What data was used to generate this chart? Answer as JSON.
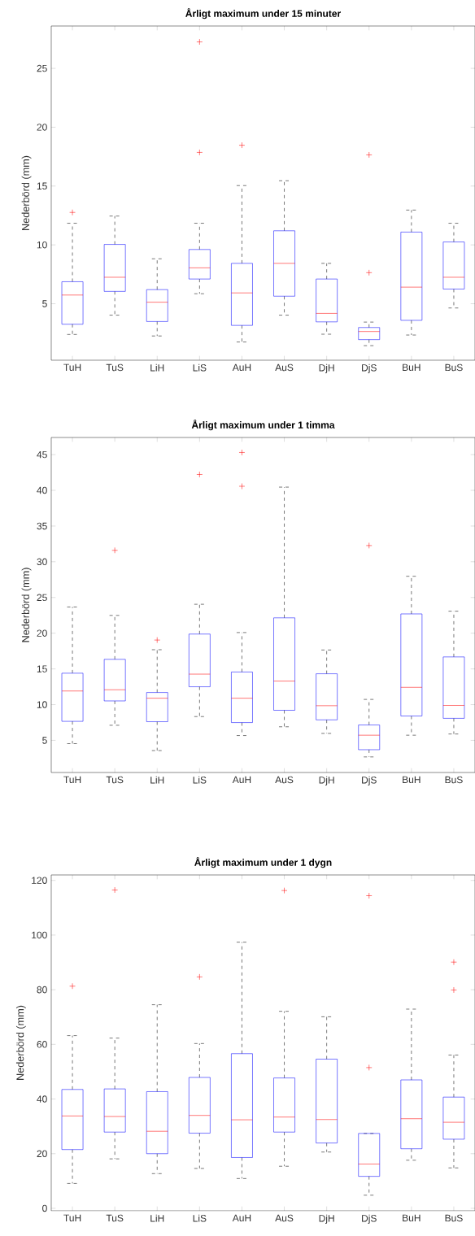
{
  "chart_data": [
    {
      "type": "box",
      "title": "Årligt maximum under 15 minuter",
      "ylabel": "Nederbörd (mm)",
      "categories": [
        "TuH",
        "TuS",
        "LiH",
        "LiS",
        "AuH",
        "AuS",
        "DjH",
        "DjS",
        "BuH",
        "BuS"
      ],
      "ylim": [
        0.2,
        28.6
      ],
      "yticks": [
        5,
        10,
        15,
        20,
        25
      ],
      "marker": "cross",
      "series": [
        {
          "color": "#0000ff",
          "boxes": [
            {
              "low": 2.39,
              "q1": 3.26,
              "median": 5.74,
              "q3": 6.87,
              "high": 11.84,
              "outliers": [
                12.76
              ]
            },
            {
              "low": 4.03,
              "q1": 6.05,
              "median": 7.25,
              "q3": 10.04,
              "high": 12.45
            },
            {
              "low": 2.26,
              "q1": 3.49,
              "median": 5.13,
              "q3": 6.2,
              "high": 8.82
            },
            {
              "low": 5.85,
              "q1": 7.1,
              "median": 8.05,
              "q3": 9.61,
              "high": 11.84,
              "outliers": [
                17.86,
                27.25
              ]
            },
            {
              "low": 1.75,
              "q1": 3.16,
              "median": 5.92,
              "q3": 8.43,
              "high": 15.04,
              "outliers": [
                18.47
              ]
            },
            {
              "low": 4.03,
              "q1": 5.64,
              "median": 8.43,
              "q3": 11.2,
              "high": 15.45
            },
            {
              "low": 2.41,
              "q1": 3.46,
              "median": 4.18,
              "q3": 7.1,
              "high": 8.43
            },
            {
              "low": 1.44,
              "q1": 1.95,
              "median": 2.64,
              "q3": 2.98,
              "high": 3.44,
              "outliers": [
                7.64,
                17.65
              ]
            },
            {
              "low": 2.34,
              "q1": 3.59,
              "median": 6.41,
              "q3": 11.09,
              "high": 12.96
            },
            {
              "low": 4.64,
              "q1": 6.25,
              "median": 7.25,
              "q3": 10.25,
              "high": 11.84
            }
          ]
        }
      ]
    },
    {
      "type": "box",
      "title": "Årligt maximum under 1 timma",
      "ylabel": "Nederbörd (mm)",
      "categories": [
        "TuH",
        "TuS",
        "LiH",
        "LiS",
        "AuH",
        "AuS",
        "DjH",
        "DjS",
        "BuH",
        "BuS"
      ],
      "ylim": [
        0.5,
        47.4
      ],
      "yticks": [
        5,
        10,
        15,
        20,
        25,
        30,
        35,
        40,
        45
      ],
      "marker": "cross",
      "series": [
        {
          "color": "#0000ff",
          "boxes": [
            {
              "low": 4.54,
              "q1": 7.66,
              "median": 11.91,
              "q3": 14.4,
              "high": 23.67
            },
            {
              "low": 7.11,
              "q1": 10.52,
              "median": 12.08,
              "q3": 16.34,
              "high": 22.49,
              "outliers": [
                31.6
              ]
            },
            {
              "low": 3.57,
              "q1": 7.61,
              "median": 10.9,
              "q3": 11.7,
              "high": 17.69,
              "outliers": [
                19.04
              ]
            },
            {
              "low": 8.33,
              "q1": 12.5,
              "median": 14.27,
              "q3": 19.88,
              "high": 24.05,
              "outliers": [
                42.22
              ]
            },
            {
              "low": 5.67,
              "q1": 7.49,
              "median": 10.9,
              "q3": 14.57,
              "high": 20.09,
              "outliers": [
                40.57,
                45.3
              ]
            },
            {
              "low": 6.9,
              "q1": 9.21,
              "median": 13.3,
              "q3": 22.15,
              "high": 40.45
            },
            {
              "low": 5.97,
              "q1": 7.87,
              "median": 9.85,
              "q3": 14.32,
              "high": 17.65
            },
            {
              "low": 2.68,
              "q1": 3.69,
              "median": 5.72,
              "q3": 7.15,
              "high": 10.73,
              "outliers": [
                32.27
              ]
            },
            {
              "low": 5.72,
              "q1": 8.41,
              "median": 12.42,
              "q3": 22.7,
              "high": 27.97
            },
            {
              "low": 5.89,
              "q1": 8.08,
              "median": 9.89,
              "q3": 16.68,
              "high": 23.08
            }
          ]
        }
      ]
    },
    {
      "type": "box",
      "title": "Årligt maximum under 1 dygn",
      "ylabel": "Nederbörd (mm)",
      "categories": [
        "TuH",
        "TuS",
        "LiH",
        "LiS",
        "AuH",
        "AuS",
        "DjH",
        "DjS",
        "BuH",
        "BuS"
      ],
      "ylim": [
        -0.9,
        122
      ],
      "yticks": [
        0,
        20,
        40,
        60,
        80,
        100,
        120
      ],
      "marker": "cross",
      "series": [
        {
          "color": "#0000ff",
          "boxes": [
            {
              "low": 9.1,
              "q1": 21.5,
              "median": 33.8,
              "q3": 43.5,
              "high": 63.2,
              "outliers": [
                81.3
              ]
            },
            {
              "low": 18.1,
              "q1": 27.9,
              "median": 33.6,
              "q3": 43.7,
              "high": 62.3,
              "outliers": [
                116.5
              ]
            },
            {
              "low": 12.7,
              "q1": 20.0,
              "median": 28.2,
              "q3": 42.7,
              "high": 74.5
            },
            {
              "low": 14.6,
              "q1": 27.5,
              "median": 34.0,
              "q3": 47.9,
              "high": 60.3,
              "outliers": [
                84.7
              ]
            },
            {
              "low": 10.9,
              "q1": 18.6,
              "median": 32.4,
              "q3": 56.6,
              "high": 97.4
            },
            {
              "low": 15.4,
              "q1": 27.9,
              "median": 33.4,
              "q3": 47.7,
              "high": 72.1,
              "outliers": [
                116.3
              ]
            },
            {
              "low": 20.6,
              "q1": 23.9,
              "median": 32.5,
              "q3": 54.6,
              "high": 70.1
            },
            {
              "low": 4.8,
              "q1": 11.7,
              "median": 16.2,
              "q3": 27.4,
              "high": 27.4,
              "outliers": [
                51.5,
                114.4
              ]
            },
            {
              "low": 17.6,
              "q1": 21.8,
              "median": 32.8,
              "q3": 47.0,
              "high": 72.9
            },
            {
              "low": 14.8,
              "q1": 25.3,
              "median": 31.5,
              "q3": 40.7,
              "high": 56.1,
              "outliers": [
                79.9,
                90.1
              ]
            }
          ]
        }
      ]
    }
  ]
}
